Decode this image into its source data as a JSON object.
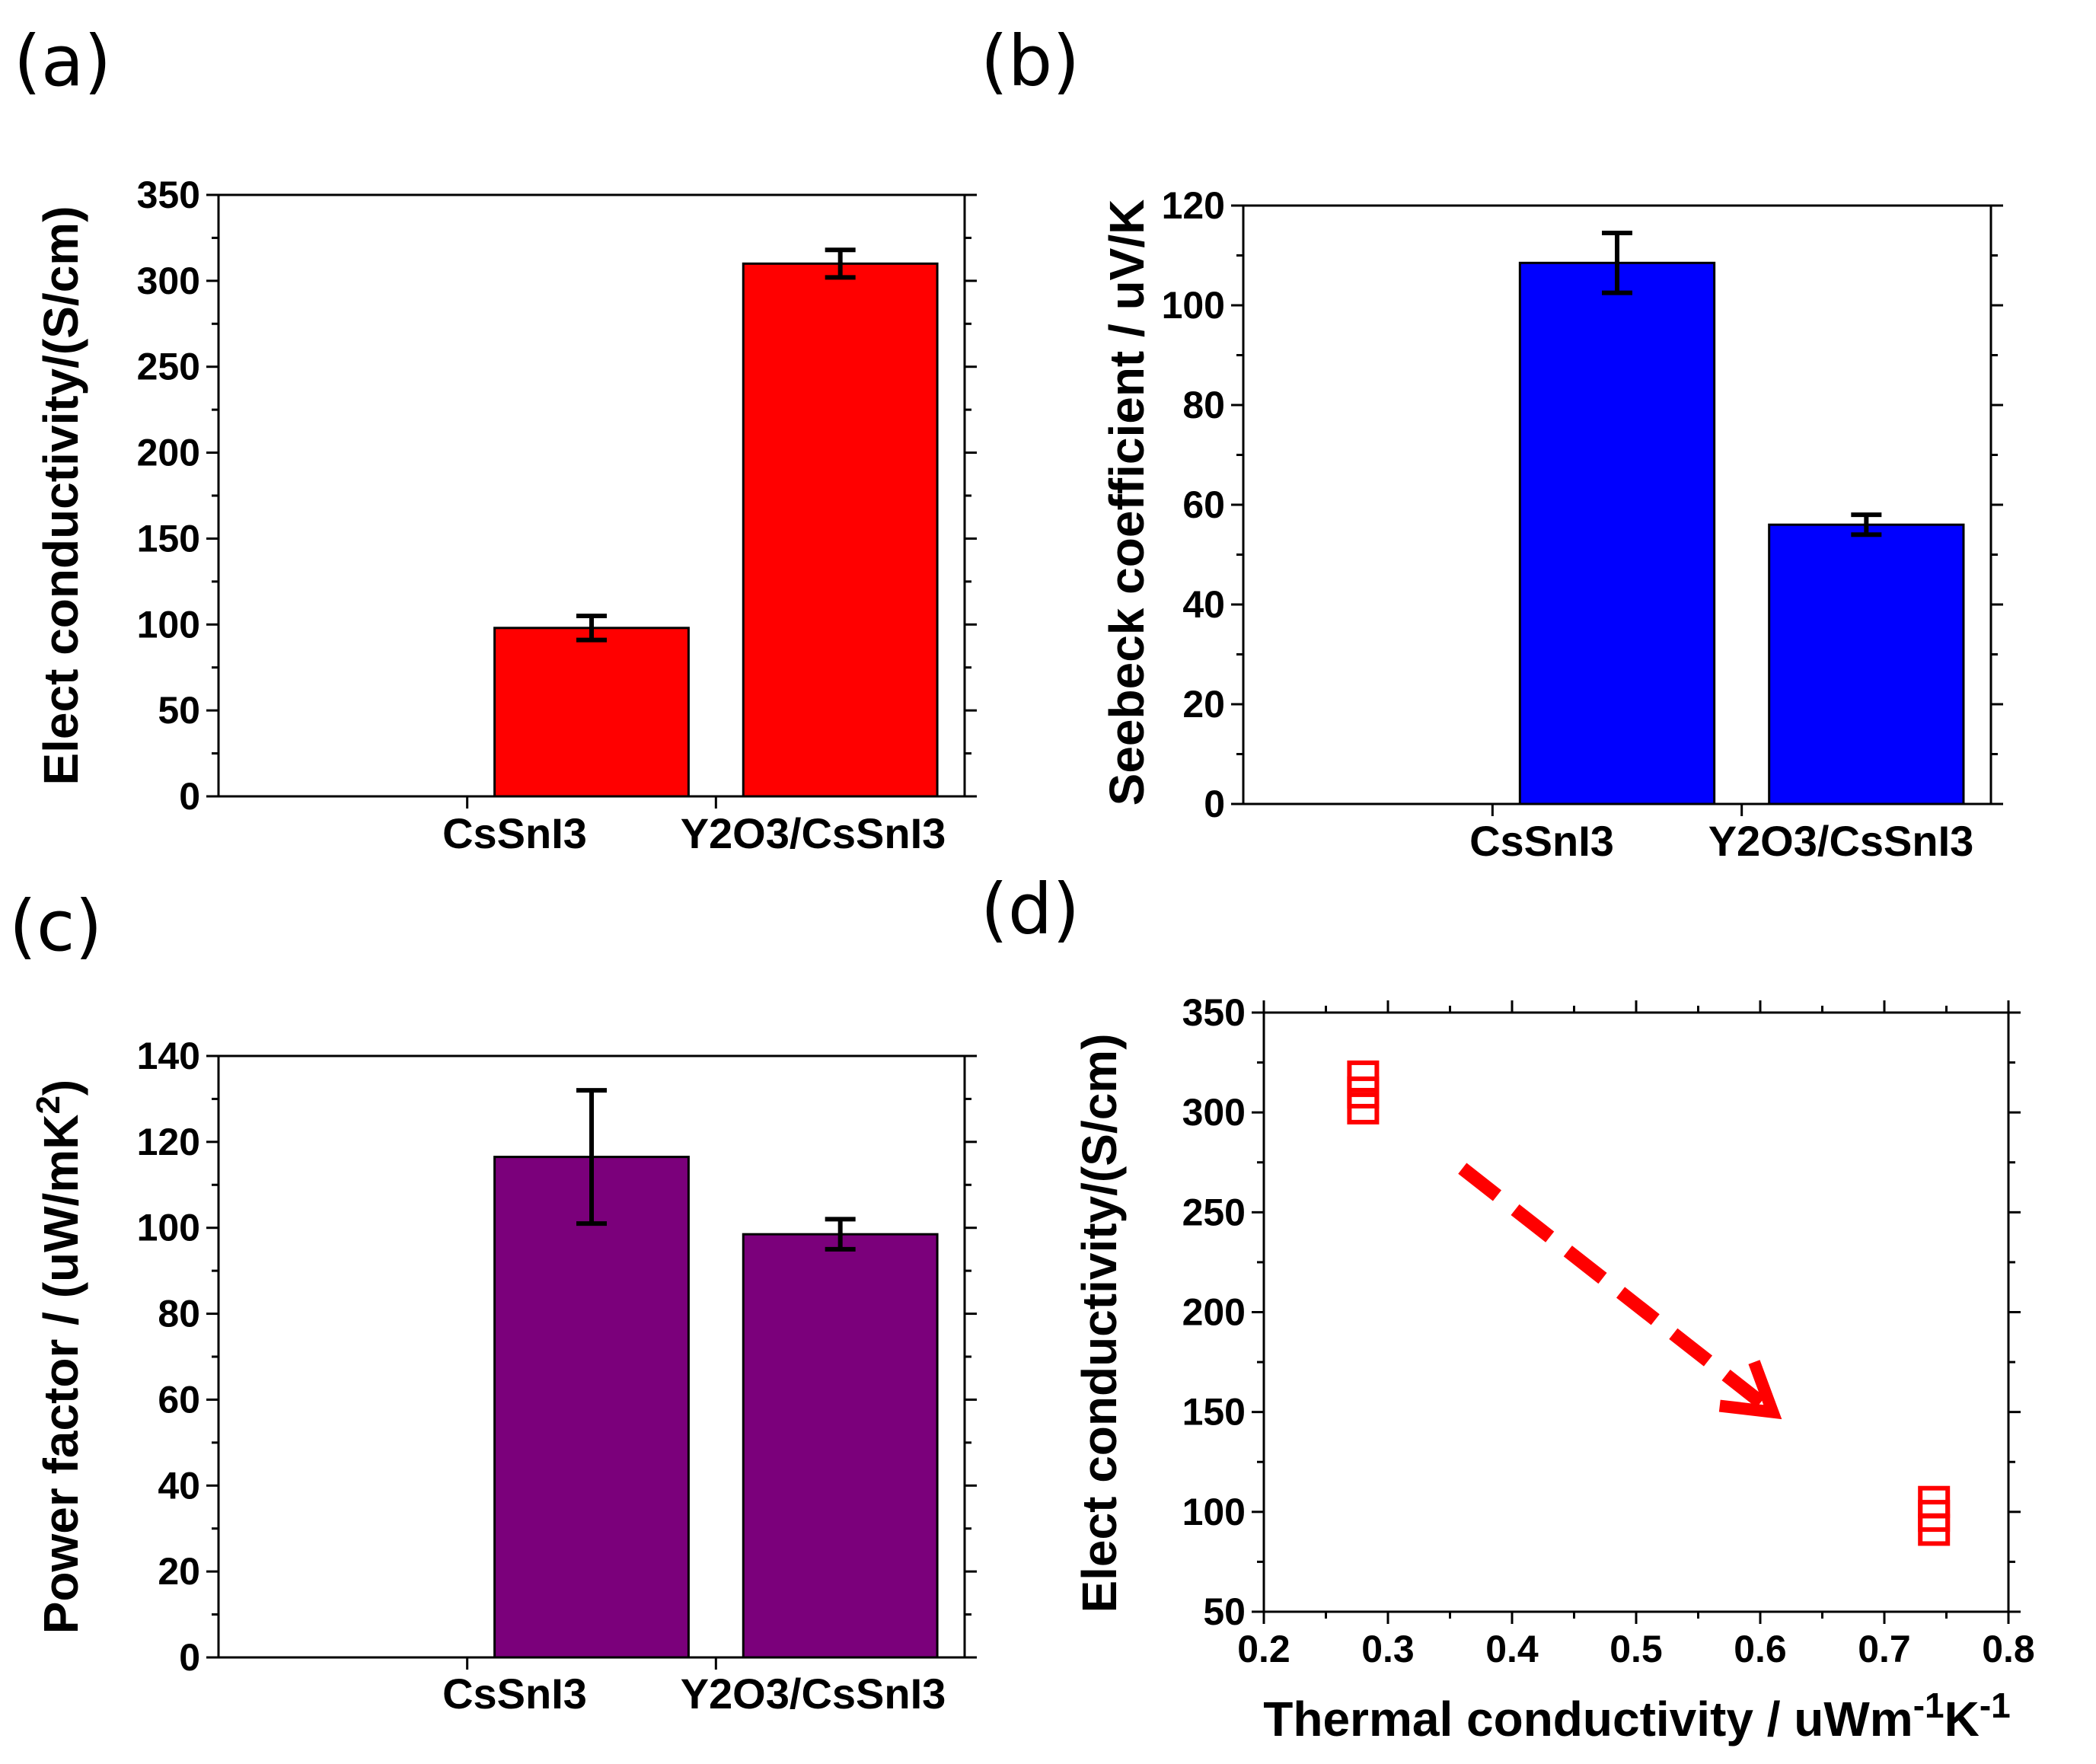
{
  "chart_data": [
    {
      "panel": "(a)",
      "type": "bar",
      "categories": [
        "",
        "CsSnI3",
        "Y2O3/CsSnI3"
      ],
      "values": [
        null,
        98,
        310
      ],
      "errors": [
        null,
        7,
        8
      ],
      "color": "#ff0000",
      "xlabel": "",
      "ylabel": "Elect conductivity/(S/cm)",
      "ylim": [
        0,
        350
      ],
      "yticks": [
        "0",
        "50",
        "100",
        "150",
        "200",
        "250",
        "300",
        "350"
      ]
    },
    {
      "panel": "(b)",
      "type": "bar",
      "categories": [
        "",
        "CsSnI3",
        "Y2O3/CsSnI3"
      ],
      "values": [
        null,
        108.5,
        56
      ],
      "errors": [
        null,
        6,
        2
      ],
      "color": "#0000ff",
      "xlabel": "",
      "ylabel": "Seebeck coefficient / uV/K",
      "ylim": [
        0,
        120
      ],
      "yticks": [
        "0",
        "20",
        "40",
        "60",
        "80",
        "100",
        "120"
      ]
    },
    {
      "panel": "(c)",
      "type": "bar",
      "categories": [
        "",
        "CsSnI3",
        "Y2O3/CsSnI3"
      ],
      "values": [
        null,
        116.5,
        98.5
      ],
      "errors": [
        null,
        15.5,
        3.5
      ],
      "color": "#7b007b",
      "xlabel": "",
      "ylabel_main": "Power factor / (uW/mK",
      "ylabel_sup": "2",
      "ylabel_close": ")",
      "ylim": [
        0,
        140
      ],
      "yticks": [
        "0",
        "20",
        "40",
        "60",
        "80",
        "100",
        "120",
        "140"
      ]
    },
    {
      "panel": "(d)",
      "type": "scatter",
      "x": [
        0.28,
        0.28,
        0.28,
        0.74,
        0.74,
        0.74
      ],
      "y": [
        318,
        310,
        302,
        105,
        98,
        91
      ],
      "color": "#ff0000",
      "marker": "open-square",
      "annotation": "dashed arrow pointing down-right",
      "arrow": {
        "from": [
          0.36,
          272
        ],
        "to": [
          0.61,
          150
        ]
      },
      "xlabel_main": "Thermal conductivity / uWm",
      "xlabel_sup1": "-1",
      "xlabel_mid": "K",
      "xlabel_sup2": "-1",
      "ylabel": "Elect conductivity/(S/cm)",
      "xlim": [
        0.2,
        0.8
      ],
      "ylim": [
        50,
        350
      ],
      "xticks": [
        "0.2",
        "0.3",
        "0.4",
        "0.5",
        "0.6",
        "0.7",
        "0.8"
      ],
      "yticks": [
        "50",
        "100",
        "150",
        "200",
        "250",
        "300",
        "350"
      ]
    }
  ]
}
